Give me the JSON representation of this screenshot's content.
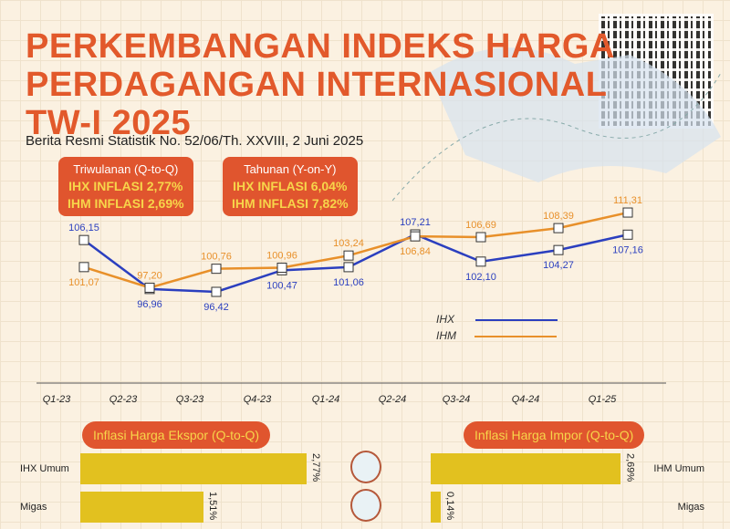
{
  "header": {
    "title_lines": [
      "PERKEMBANGAN INDEKS HARGA",
      "PERDAGANGAN INTERNASIONAL",
      "TW-I 2025"
    ],
    "subtitle": "Berita Resmi Statistik No. 52/06/Th. XXVIII, 2 Juni 2025"
  },
  "summary": [
    {
      "heading": "Triwulanan (Q-to-Q)",
      "lines": [
        "IHX INFLASI 2,77%",
        "IHM INFLASI 2,69%"
      ]
    },
    {
      "heading": "Tahunan (Y-on-Y)",
      "lines": [
        "IHX INFLASI 6,04%",
        "IHM INFLASI 7,82%"
      ]
    }
  ],
  "colors": {
    "ihx": "#2b3fbf",
    "ihm": "#e8902a",
    "accent": "#e0552e",
    "bar": "#e2c11f"
  },
  "chart_data": {
    "type": "line",
    "categories": [
      "Q1-23",
      "Q2-23",
      "Q3-23",
      "Q4-23",
      "Q1-24",
      "Q2-24",
      "Q3-24",
      "Q4-24",
      "Q1-25"
    ],
    "series": [
      {
        "name": "IHX",
        "values": [
          106.15,
          96.96,
          96.42,
          100.47,
          101.06,
          107.21,
          102.1,
          104.27,
          107.16
        ],
        "labels": [
          "106,15",
          "96,96",
          "96,42",
          "100,47",
          "101,06",
          "107,21",
          "102,10",
          "104,27",
          "107,16"
        ]
      },
      {
        "name": "IHM",
        "values": [
          101.07,
          97.2,
          100.76,
          100.96,
          103.24,
          106.84,
          106.69,
          108.39,
          111.31
        ],
        "labels": [
          "101,07",
          "97,20",
          "100,76",
          "100,96",
          "103,24",
          "106,84",
          "106,69",
          "108,39",
          "111,31"
        ]
      }
    ],
    "legend": "right"
  },
  "ekspor": {
    "title": "Inflasi Harga Ekspor (Q-to-Q)",
    "rows": [
      {
        "label": "IHX Umum",
        "value": 2.77,
        "text": "2,77%"
      },
      {
        "label": "Migas",
        "value": 1.51,
        "text": "1,51%"
      }
    ]
  },
  "impor": {
    "title": "Inflasi Harga Impor (Q-to-Q)",
    "rows": [
      {
        "label": "IHM Umum",
        "value": 2.69,
        "text": "2,69%"
      },
      {
        "label": "Migas",
        "value": 0.14,
        "text": "0,14%"
      }
    ]
  }
}
